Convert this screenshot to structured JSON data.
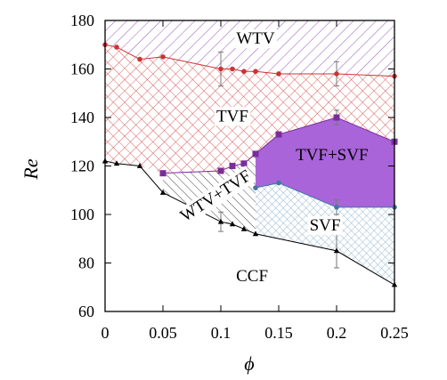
{
  "chart_data": {
    "type": "area",
    "title": "",
    "xlabel": "ϕ",
    "ylabel": "Re",
    "xlim": [
      0,
      0.25
    ],
    "ylim": [
      60,
      180
    ],
    "xticks": [
      "0",
      "0.05",
      "0.1",
      "0.15",
      "0.2",
      "0.25"
    ],
    "yticks": [
      "60",
      "80",
      "100",
      "120",
      "140",
      "160",
      "180"
    ],
    "grid": false,
    "series": [
      {
        "name": "",
        "color": "#cc3333",
        "marker": "circle",
        "x": [
          0,
          0.01,
          0.03,
          0.05,
          0.1,
          0.11,
          0.12,
          0.13,
          0.15,
          0.2,
          0.25
        ],
        "y": [
          170,
          169,
          164,
          165,
          160,
          160,
          159,
          159,
          158,
          158,
          157
        ],
        "err": [
          0,
          0,
          0,
          0,
          7,
          0,
          0,
          0,
          0,
          5,
          0
        ]
      },
      {
        "name": "",
        "color": "#7a2d9a",
        "marker": "square",
        "x": [
          0.05,
          0.1,
          0.11,
          0.12,
          0.13,
          0.15,
          0.2,
          0.25
        ],
        "y": [
          117,
          118,
          120,
          121,
          125,
          133,
          140,
          130
        ],
        "err": [
          0,
          0,
          0,
          0,
          0,
          0,
          3,
          0
        ]
      },
      {
        "name": "",
        "color": "#3f78a8",
        "marker": "circle",
        "x": [
          0.13,
          0.15,
          0.2,
          0.25
        ],
        "y": [
          111,
          113,
          103,
          103
        ],
        "err": [
          0,
          0,
          3,
          0
        ]
      },
      {
        "name": "",
        "color": "#000000",
        "marker": "triangle",
        "x": [
          0,
          0.01,
          0.03,
          0.05,
          0.1,
          0.11,
          0.12,
          0.13,
          0.2,
          0.25
        ],
        "y": [
          122,
          121,
          120,
          109,
          97,
          96,
          94,
          92,
          85,
          71
        ],
        "err": [
          0,
          0,
          0,
          0,
          4,
          0,
          0,
          0,
          7,
          0
        ]
      }
    ],
    "regions": [
      {
        "label": "WTV",
        "label_at": [
          0.13,
          173
        ],
        "pattern": "hatch-purple"
      },
      {
        "label": "TVF",
        "label_at": [
          0.11,
          141
        ],
        "pattern": "crosshatch-red"
      },
      {
        "label": "TVF+SVF",
        "label_at": [
          0.196,
          125
        ],
        "pattern": "solid-purple"
      },
      {
        "label": "WTV+TVF",
        "label_at": [
          0.095,
          108
        ],
        "pattern": "hatch-black"
      },
      {
        "label": "SVF",
        "label_at": [
          0.19,
          96
        ],
        "pattern": "crosshatch-blue"
      },
      {
        "label": "CCF",
        "label_at": [
          0.127,
          75
        ],
        "pattern": "none"
      }
    ]
  }
}
